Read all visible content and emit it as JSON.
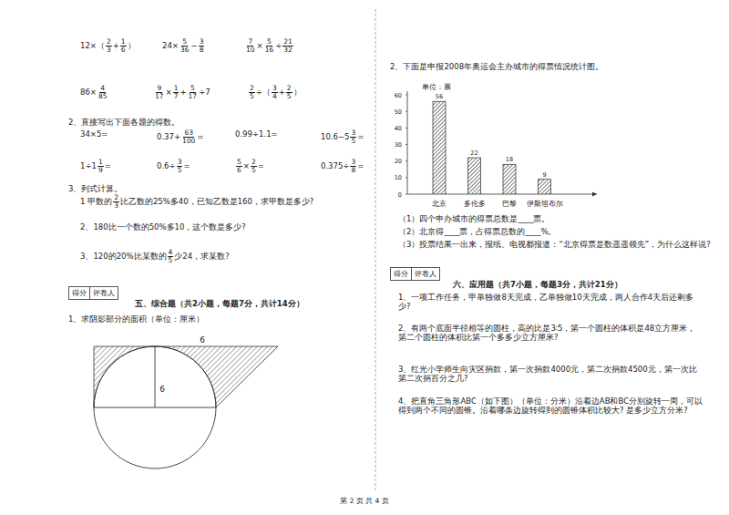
{
  "document": {
    "calc_rows": [
      [
        [
          "12×（",
          {
            "n": "2",
            "d": "3"
          },
          "+",
          {
            "n": "1",
            "d": "6"
          },
          "）"
        ],
        [
          "24×",
          {
            "n": "5",
            "d": "36"
          },
          "−",
          {
            "n": "3",
            "d": "8"
          }
        ],
        [
          {
            "n": "7",
            "d": "10"
          },
          "×",
          {
            "n": "5",
            "d": "16"
          },
          "÷",
          {
            "n": "21",
            "d": "32"
          }
        ]
      ],
      [
        [
          "86×",
          {
            "n": "4",
            "d": "85"
          }
        ],
        [
          {
            "n": "9",
            "d": "17"
          },
          "×",
          {
            "n": "1",
            "d": "7"
          },
          "+",
          {
            "n": "5",
            "d": "17"
          },
          "÷7"
        ],
        [
          {
            "n": "2",
            "d": "5"
          },
          "÷（",
          {
            "n": "3",
            "d": "4"
          },
          "+",
          {
            "n": "2",
            "d": "5"
          },
          "）"
        ]
      ]
    ],
    "q2_title": "2、直接写出下面各题的得数。",
    "q2_rows": [
      [
        [
          "34×5="
        ],
        [
          "0.37+",
          {
            "n": "63",
            "d": "100"
          },
          "="
        ],
        [
          "0.99÷1.1="
        ],
        [
          "10.6−5",
          {
            "n": "3",
            "d": "5"
          },
          "="
        ]
      ],
      [
        [
          "1÷1",
          {
            "n": "1",
            "d": "9"
          },
          "="
        ],
        [
          "0.6÷",
          {
            "n": "3",
            "d": "5"
          },
          "="
        ],
        [
          {
            "n": "5",
            "d": "6"
          },
          "×",
          {
            "n": "2",
            "d": "5"
          },
          "="
        ],
        [
          "0.375÷",
          {
            "n": "3",
            "d": "8"
          },
          "="
        ]
      ]
    ],
    "q3_title": "3、列式计算。",
    "q3_items": [
      [
        "1 甲数的",
        {
          "n": "2",
          "d": "3"
        },
        "比乙数的25%多40，已知乙数是160，求甲数是多少?"
      ],
      [
        "2、180比一个数的50%多10，这个数是多少?"
      ],
      [
        "3、120的20%比某数的",
        {
          "n": "4",
          "d": "5"
        },
        "少24，求某数?"
      ]
    ],
    "score_box": [
      "得分",
      "评卷人"
    ],
    "section5_title": "五、综合题（共2小题，每题7分，共计14分）",
    "section5_q1": "1、求阴影部分的面积（单位：厘米）",
    "figure_labels": [
      "6",
      "6"
    ],
    "chart_intro": "2、下面是申报2008年奥运会主办城市的得票情况统计图。",
    "chart_questions": [
      "（1）四个申办城市的得票总数是____票。",
      "（2）北京得____票，占得票总数的____%。",
      "（3）投票结果一出来，报纸、电视都报道：“北京得票是数遥遥领先”，为什么这样说?"
    ],
    "section6_title": "六、应用题（共7小题，每题3分，共计21分）",
    "section6_items": [
      "1、一项工作任务，甲单独做8天完成，乙单独做10天完成，两人合作4天后还剩多少?",
      "2、有两个底面半径相等的圆柱，高的比是3∶5，第一个圆柱的体积是48立方厘米，第二个圆柱的体积比第一个多多少立方厘米?",
      "3、红光小学师生向灾区捐款，第一次捐款4000元，第二次捐款4500元，第一次比第二次捐百分之几?",
      "4、把直角三角形ABC（如下图）（单位：分米）沿着边AB和BC分别旋转一周，可以得到两个不同的圆锥。沿着哪条边旋转得到的圆锥体积比较大? 是多少立方分米?"
    ],
    "footer": "第 2 页 共 4 页"
  },
  "chart_data": {
    "type": "bar",
    "y_label": "单位：票",
    "categories": [
      "北京",
      "多伦多",
      "巴黎",
      "伊斯坦布尔"
    ],
    "values": [
      56,
      22,
      18,
      9
    ],
    "color": "#444444",
    "ylim": [
      0,
      60
    ],
    "yticks": [
      0,
      10,
      20,
      30,
      40,
      50,
      60
    ],
    "data_labels": true
  }
}
